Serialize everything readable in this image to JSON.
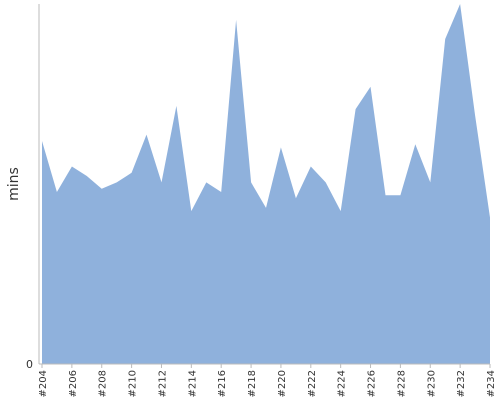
{
  "chart_data": {
    "type": "area",
    "title": "",
    "xlabel": "",
    "ylabel": "mins",
    "grid": false,
    "legend": "none",
    "ylim": [
      0,
      113
    ],
    "y_ticks_shown": [
      "0"
    ],
    "fill_color": "#8fb1dc",
    "axis_color": "#bbbbbb",
    "x": [
      "#204",
      "#205",
      "#206",
      "#207",
      "#208",
      "#209",
      "#210",
      "#211",
      "#212",
      "#213",
      "#214",
      "#215",
      "#216",
      "#217",
      "#218",
      "#219",
      "#220",
      "#221",
      "#222",
      "#223",
      "#224",
      "#225",
      "#226",
      "#227",
      "#228",
      "#229",
      "#230",
      "#231",
      "#232",
      "#233",
      "#234"
    ],
    "x_tick_labels": [
      "#204",
      "#206",
      "#208",
      "#210",
      "#212",
      "#214",
      "#216",
      "#218",
      "#220",
      "#222",
      "#224",
      "#226",
      "#228",
      "#230",
      "#232",
      "#234"
    ],
    "series": [
      {
        "values": [
          70,
          54,
          62,
          59,
          55,
          57,
          60,
          72,
          57,
          81,
          48,
          57,
          54,
          108,
          57,
          49,
          68,
          52,
          62,
          57,
          48,
          80,
          87,
          53,
          53,
          69,
          57,
          102,
          113,
          78,
          46
        ]
      }
    ]
  }
}
